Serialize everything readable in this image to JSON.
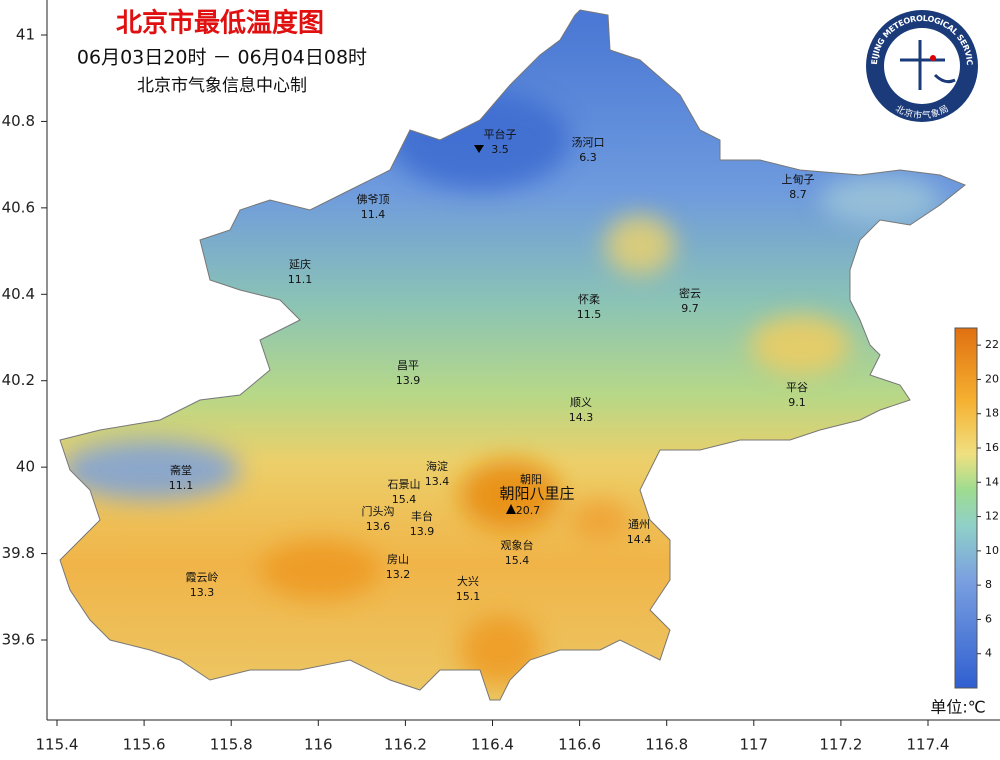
{
  "header": {
    "title": "北京市最低温度图",
    "period": "06月03日20时 － 06月04日08时",
    "producer": "北京市气象信息中心制"
  },
  "logo": {
    "text_en": "BEIJING METEOROLOGICAL SERVICE",
    "text_cn": "北京市气象局"
  },
  "axes": {
    "lon_ticks": [
      115.4,
      115.6,
      115.8,
      116,
      116.2,
      116.4,
      116.6,
      116.8,
      117,
      117.2,
      117.4
    ],
    "lat_ticks": [
      41,
      40.8,
      40.6,
      40.4,
      40.2,
      40,
      39.8,
      39.6
    ]
  },
  "colorbar": {
    "range": [
      2,
      23
    ],
    "ticks": [
      4,
      6,
      8,
      10,
      12,
      14,
      16,
      18,
      20,
      22
    ],
    "unit": "单位:℃"
  },
  "stations": [
    {
      "name": "平台子",
      "value": 3.5
    },
    {
      "name": "汤河口",
      "value": 6.3
    },
    {
      "name": "上甸子",
      "value": 8.7
    },
    {
      "name": "佛爷顶",
      "value": 11.4
    },
    {
      "name": "延庆",
      "value": 11.1
    },
    {
      "name": "怀柔",
      "value": 11.5
    },
    {
      "name": "密云",
      "value": 9.7
    },
    {
      "name": "昌平",
      "value": 13.9
    },
    {
      "name": "平谷",
      "value": 9.1
    },
    {
      "name": "顺义",
      "value": 14.3
    },
    {
      "name": "海淀",
      "value": 13.4
    },
    {
      "name": "石景山",
      "value": 15.4
    },
    {
      "name": "朝阳",
      "value": 20.7
    },
    {
      "name": "门头沟",
      "value": 13.6
    },
    {
      "name": "丰台",
      "value": 13.9
    },
    {
      "name": "通州",
      "value": 14.4
    },
    {
      "name": "观象台",
      "value": 15.4
    },
    {
      "name": "房山",
      "value": 13.2
    },
    {
      "name": "斋堂",
      "value": 11.1
    },
    {
      "name": "霞云岭",
      "value": 13.3
    },
    {
      "name": "大兴",
      "value": 15.1
    }
  ],
  "max_label": "朝阳八里庄"
}
